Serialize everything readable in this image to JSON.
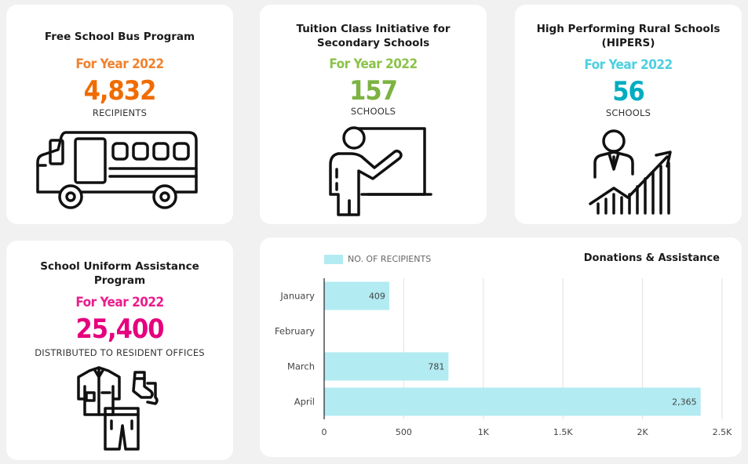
{
  "cards": {
    "bus": {
      "title": "Free School Bus Program",
      "year": "For Year 2022",
      "value": "4,832",
      "unit": "RECIPIENTS",
      "accent": "#f0822f",
      "value_color": "#ef6c00",
      "icon": "school-bus-icon"
    },
    "tuition": {
      "title_line1": "Tuition Class Initiative for",
      "title_line2": "Secondary Schools",
      "year": "For Year 2022",
      "value": "157",
      "unit": "SCHOOLS",
      "accent": "#8bc34a",
      "value_color": "#7cb342",
      "icon": "teacher-board-icon"
    },
    "hipers": {
      "title_line1": "High Performing Rural Schools",
      "title_line2": "(HIPERS)",
      "year": "For Year 2022",
      "value": "56",
      "unit": "SCHOOLS",
      "accent": "#4dd0e1",
      "value_color": "#00acc1",
      "icon": "growth-chart-person-icon"
    },
    "uniform": {
      "title_line1": "School Uniform Assistance",
      "title_line2": "Program",
      "year": "For Year 2022",
      "value": "25,400",
      "unit": "DISTRIBUTED TO RESIDENT OFFICES",
      "accent": "#e91e8c",
      "value_color": "#e6007e",
      "icon": "uniform-clothes-icon"
    }
  },
  "chart_data": {
    "type": "bar",
    "orientation": "horizontal",
    "title": "Donations & Assistance",
    "categories": [
      "January",
      "February",
      "March",
      "April"
    ],
    "series": [
      {
        "name": "NO. OF RECIPIENTS",
        "values": [
          409,
          null,
          781,
          2365
        ]
      }
    ],
    "data_labels": [
      "409",
      "",
      "781",
      "2,365"
    ],
    "xlim": [
      0,
      2500
    ],
    "xticks": [
      0,
      500,
      1000,
      1500,
      2000,
      2500
    ],
    "xtick_labels": [
      "0",
      "500",
      "1K",
      "1.5K",
      "2K",
      "2.5K"
    ],
    "grid": true,
    "legend": "top-left",
    "bar_color": "#b2ebf2"
  }
}
